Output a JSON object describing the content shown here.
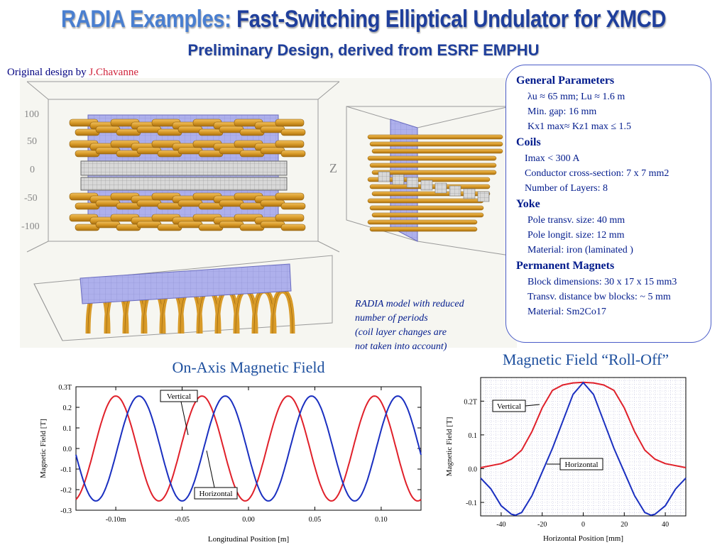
{
  "title": {
    "prefix": "RADIA Examples:",
    "main": "Fast-Switching Elliptical Undulator for XMCD"
  },
  "subtitle": "Preliminary Design, derived from ESRF EMPHU",
  "credit": {
    "prefix": "Original design by",
    "name": "J.Chavanne"
  },
  "model_axis_ticks": [
    "100",
    "50",
    "0",
    "-50",
    "-100"
  ],
  "model_axis_label": "Z",
  "model_caption": [
    "RADIA model with reduced",
    "number of periods",
    "(coil layer changes are",
    "not taken into account)"
  ],
  "info": {
    "general_title": "General Parameters",
    "lambda_line": "λu ≈ 65 mm;  Lu ≈ 1.6 m",
    "gap_line": "Min. gap: 16 mm",
    "k_line": "Kx1 max≈ Kz1 max ≤ 1.5",
    "coils_title": "Coils",
    "imax_line": "Imax < 300 A",
    "conductor_line": "Conductor cross-section: 7 x 7 mm2",
    "layers_line": "Number of Layers: 8",
    "yoke_title": "Yoke",
    "pole_transv": "Pole transv. size: 40 mm",
    "pole_longit": "Pole longit. size: 12 mm",
    "material_yoke": "Material: iron (laminated )",
    "pm_title": "Permanent Magnets",
    "block_dims": "Block dimensions: 30 x 17 x 15 mm3",
    "transv_dist": "Transv. distance bw blocks: ~ 5 mm",
    "material_pm": "Material: Sm2Co17"
  },
  "colors": {
    "red": "#e0202a",
    "blue": "#1a2fc0",
    "title_blue": "#1f3f9c",
    "coil": "#e0a030",
    "yoke": "#a8a8e8"
  },
  "chart_data": [
    {
      "type": "line",
      "title": "On-Axis Magnetic Field",
      "xlabel": "Longitudinal Position [m]",
      "ylabel": "Magnetic Field [T]",
      "xlim": [
        -0.13,
        0.13
      ],
      "ylim": [
        -0.3,
        0.3
      ],
      "xticks": [
        -0.1,
        -0.05,
        0.0,
        0.05,
        0.1
      ],
      "xtick_labels": [
        "-0.10m",
        "-0.05",
        "0.00",
        "0.05",
        "0.10"
      ],
      "yticks": [
        0.3,
        0.2,
        0.1,
        0.0,
        -0.1,
        -0.2,
        -0.3
      ],
      "ytick_labels": [
        "0.3T",
        "0.2",
        "0.1",
        "0.0",
        "-0.1",
        "-0.2",
        "-0.3"
      ],
      "grid": false,
      "annotations": [
        "Vertical",
        "Horizontal"
      ],
      "series": [
        {
          "name": "Vertical",
          "color": "#e0202a",
          "period": 0.065,
          "amplitude": 0.255,
          "peak_x": [
            -0.1,
            -0.035,
            0.03,
            0.095
          ],
          "x_range": [
            -0.13,
            0.13
          ]
        },
        {
          "name": "Horizontal",
          "color": "#1a2fc0",
          "period": 0.065,
          "amplitude": 0.255,
          "peak_x": [
            -0.0825,
            -0.0175,
            0.0475,
            0.1125
          ],
          "x_range": [
            -0.13,
            0.13
          ]
        }
      ]
    },
    {
      "type": "line",
      "title": "Magnetic Field “Roll-Off”",
      "xlabel": "Horizontal Position [mm]",
      "ylabel": "Magnetic Field [T]",
      "xlim": [
        -50,
        50
      ],
      "ylim": [
        -0.14,
        0.27
      ],
      "xticks": [
        -40,
        -20,
        0,
        20,
        40
      ],
      "xtick_labels": [
        "-40",
        "-20",
        "0",
        "20",
        "40"
      ],
      "yticks": [
        0.2,
        0.1,
        0.0,
        -0.1
      ],
      "ytick_labels": [
        "0.2T",
        "0.1",
        "0.0",
        "-0.1"
      ],
      "grid": true,
      "annotations": [
        "Vertical",
        "Horizontal"
      ],
      "series": [
        {
          "name": "Vertical",
          "color": "#e0202a",
          "x": [
            -50,
            -40,
            -35,
            -30,
            -25,
            -20,
            -15,
            -10,
            -5,
            0,
            5,
            10,
            15,
            20,
            25,
            30,
            35,
            40,
            50
          ],
          "y": [
            0.003,
            0.015,
            0.028,
            0.055,
            0.11,
            0.18,
            0.232,
            0.248,
            0.254,
            0.256,
            0.254,
            0.248,
            0.232,
            0.18,
            0.11,
            0.055,
            0.028,
            0.015,
            0.003
          ]
        },
        {
          "name": "Horizontal",
          "color": "#1a2fc0",
          "x": [
            -50,
            -45,
            -40,
            -35,
            -33,
            -30,
            -25,
            -20,
            -15,
            -10,
            -5,
            0,
            5,
            10,
            15,
            20,
            25,
            30,
            33,
            35,
            40,
            45,
            50
          ],
          "y": [
            -0.028,
            -0.06,
            -0.11,
            -0.135,
            -0.138,
            -0.13,
            -0.08,
            -0.01,
            0.06,
            0.14,
            0.22,
            0.255,
            0.22,
            0.14,
            0.06,
            -0.01,
            -0.08,
            -0.13,
            -0.138,
            -0.135,
            -0.11,
            -0.06,
            -0.028
          ]
        }
      ]
    }
  ]
}
